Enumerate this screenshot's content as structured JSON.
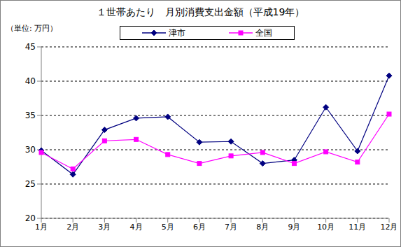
{
  "chart_data": {
    "type": "line",
    "title": "１世帯あたり　月別消費支出金額（平成19年）",
    "y_label": "（単位: 万円）",
    "categories": [
      "1月",
      "2月",
      "3月",
      "4月",
      "5月",
      "6月",
      "7月",
      "8月",
      "9月",
      "10月",
      "11月",
      "12月"
    ],
    "series": [
      {
        "name": "津市",
        "color": "#000080",
        "marker": "diamond",
        "values": [
          29.9,
          26.4,
          32.9,
          34.6,
          34.8,
          31.1,
          31.2,
          28.0,
          28.5,
          36.2,
          29.8,
          40.8
        ]
      },
      {
        "name": "全国",
        "color": "#ff00ff",
        "marker": "square",
        "values": [
          29.6,
          27.2,
          31.3,
          31.5,
          29.3,
          28.0,
          29.1,
          29.6,
          28.0,
          29.7,
          28.2,
          35.2
        ]
      }
    ],
    "ylim": [
      20,
      45
    ],
    "yticks": [
      20,
      25,
      30,
      35,
      40,
      45
    ],
    "grid": true,
    "legend": "top"
  }
}
